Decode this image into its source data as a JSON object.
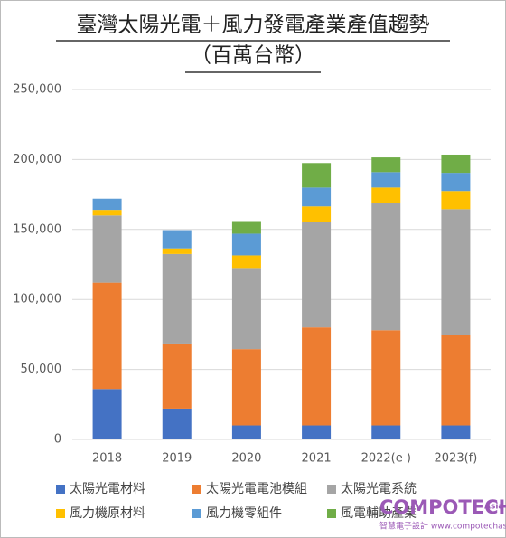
{
  "chart_data": {
    "type": "stacked_bar",
    "title": "臺灣太陽光電＋風力發電產業產值趨勢",
    "subtitle": "（百萬台幣）",
    "categories": [
      "2018",
      "2019",
      "2020",
      "2021",
      "2022(e )",
      "2023(f)"
    ],
    "series": [
      {
        "name": "太陽光電材料",
        "color": "#4472c4",
        "values": [
          36000,
          22000,
          10000,
          10000,
          10000,
          10000
        ]
      },
      {
        "name": "太陽光電電池模組",
        "color": "#ed7d31",
        "values": [
          76000,
          46500,
          54500,
          70000,
          68000,
          64500
        ]
      },
      {
        "name": "太陽光電系統",
        "color": "#a5a5a5",
        "values": [
          48000,
          64000,
          58000,
          75500,
          91000,
          90000
        ]
      },
      {
        "name": "風力機原材料",
        "color": "#ffc000",
        "values": [
          4000,
          4000,
          9000,
          11000,
          11000,
          13000
        ]
      },
      {
        "name": "風力機零組件",
        "color": "#5b9bd5",
        "values": [
          8000,
          13000,
          15500,
          13500,
          11000,
          13000
        ]
      },
      {
        "name": "風電輔助產業",
        "color": "#70ad47",
        "values": [
          0,
          0,
          9000,
          17500,
          10500,
          13000
        ]
      }
    ],
    "ylim": [
      0,
      250000
    ],
    "yticks": [
      0,
      {
        "value": 50000,
        "label": "50,000"
      },
      {
        "value": 100000,
        "label": "100,000"
      },
      {
        "value": 150000,
        "label": "150,000"
      },
      {
        "value": 200000,
        "label": "200,000"
      },
      {
        "value": 250000,
        "label": "250,000"
      }
    ],
    "grid": true,
    "legend": "bottom",
    "watermark": {
      "brand": "COMPOTECH",
      "region": "Asia",
      "tagline": "智慧電子設計 www.compotechasia.com"
    }
  }
}
